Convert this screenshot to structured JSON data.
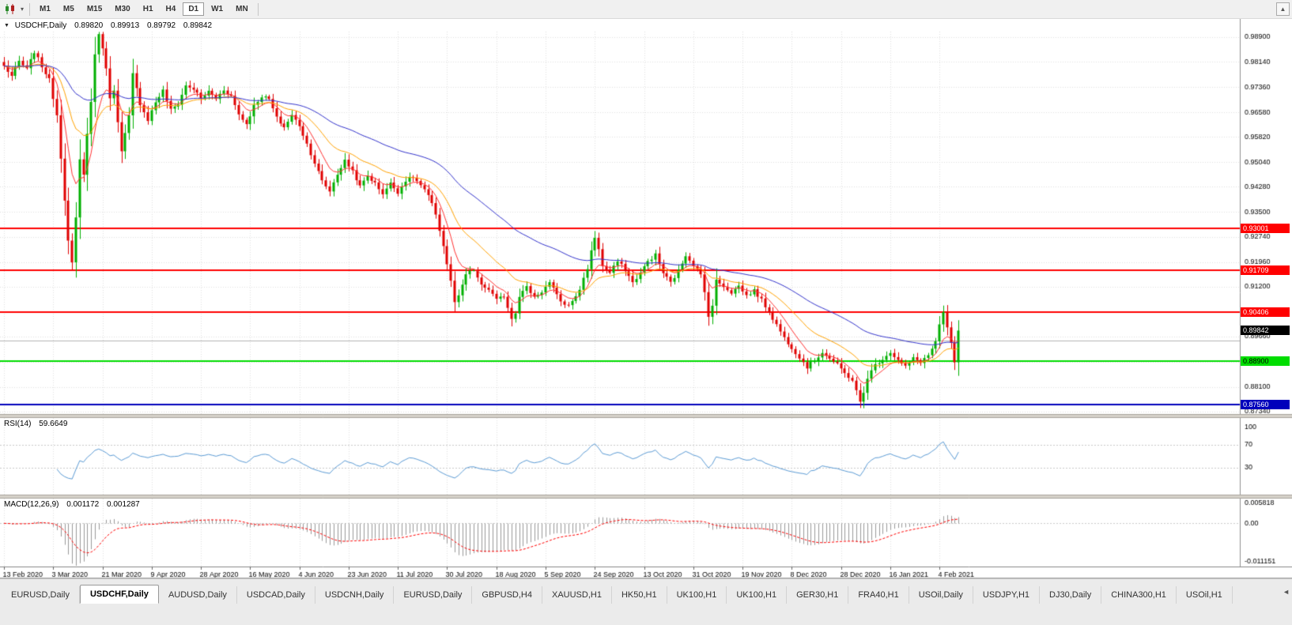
{
  "toolbar": {
    "periods": [
      "M1",
      "M5",
      "M15",
      "M30",
      "H1",
      "H4",
      "D1",
      "W1",
      "MN"
    ],
    "active_period": "D1",
    "caret_glyph": "▾",
    "dock_glyph": "▲"
  },
  "window_header": {
    "menu_glyph": "▼",
    "symbol": "USDCHF,Daily",
    "open": "0.89820",
    "high": "0.89913",
    "low": "0.89792",
    "close": "0.89842"
  },
  "chart_data": {
    "type": "candlestick",
    "symbol": "USDCHF",
    "timeframe": "Daily",
    "x_tick_labels": [
      "13 Feb 2020",
      "3 Mar 2020",
      "21 Mar 2020",
      "9 Apr 2020",
      "28 Apr 2020",
      "16 May 2020",
      "4 Jun 2020",
      "23 Jun 2020",
      "11 Jul 2020",
      "30 Jul 2020",
      "18 Aug 2020",
      "5 Sep 2020",
      "24 Sep 2020",
      "13 Oct 2020",
      "31 Oct 2020",
      "19 Nov 2020",
      "8 Dec 2020",
      "28 Dec 2020",
      "16 Jan 2021",
      "4 Feb 2021"
    ],
    "candles_per_tick": 13,
    "candle_count": 253,
    "y_axis_labels": [
      "0.98900",
      "0.98140",
      "0.97360",
      "0.96580",
      "0.95820",
      "0.95040",
      "0.94280",
      "0.93500",
      "0.92740",
      "0.91960",
      "0.91200",
      "0.90420",
      "0.89660",
      "0.88880",
      "0.88100",
      "0.87340"
    ],
    "y_range": [
      0.8729,
      0.9907
    ],
    "price_path": [
      [
        0,
        0.98
      ],
      [
        2,
        0.977
      ],
      [
        4,
        0.9815
      ],
      [
        6,
        0.979
      ],
      [
        8,
        0.9845
      ],
      [
        10,
        0.98
      ],
      [
        12,
        0.9758
      ],
      [
        14,
        0.965
      ],
      [
        16,
        0.939
      ],
      [
        17,
        0.926
      ],
      [
        18,
        0.919
      ],
      [
        19,
        0.933
      ],
      [
        20,
        0.951
      ],
      [
        21,
        0.947
      ],
      [
        22,
        0.959
      ],
      [
        23,
        0.969
      ],
      [
        24,
        0.984
      ],
      [
        25,
        0.9895
      ],
      [
        26,
        0.986
      ],
      [
        27,
        0.979
      ],
      [
        28,
        0.9705
      ],
      [
        29,
        0.973
      ],
      [
        30,
        0.9625
      ],
      [
        31,
        0.9535
      ],
      [
        33,
        0.9645
      ],
      [
        34,
        0.9775
      ],
      [
        36,
        0.9685
      ],
      [
        38,
        0.9635
      ],
      [
        40,
        0.969
      ],
      [
        42,
        0.9725
      ],
      [
        44,
        0.9665
      ],
      [
        46,
        0.9685
      ],
      [
        48,
        0.974
      ],
      [
        50,
        0.973
      ],
      [
        52,
        0.97
      ],
      [
        54,
        0.9722
      ],
      [
        56,
        0.97
      ],
      [
        58,
        0.9728
      ],
      [
        60,
        0.9708
      ],
      [
        62,
        0.9652
      ],
      [
        64,
        0.9622
      ],
      [
        66,
        0.9678
      ],
      [
        68,
        0.9708
      ],
      [
        70,
        0.9698
      ],
      [
        72,
        0.964
      ],
      [
        74,
        0.9612
      ],
      [
        76,
        0.9648
      ],
      [
        78,
        0.9618
      ],
      [
        80,
        0.956
      ],
      [
        82,
        0.9502
      ],
      [
        84,
        0.9445
      ],
      [
        86,
        0.9415
      ],
      [
        88,
        0.9468
      ],
      [
        90,
        0.9508
      ],
      [
        92,
        0.9478
      ],
      [
        94,
        0.9428
      ],
      [
        96,
        0.9462
      ],
      [
        98,
        0.9438
      ],
      [
        100,
        0.9408
      ],
      [
        102,
        0.9438
      ],
      [
        104,
        0.9412
      ],
      [
        106,
        0.9448
      ],
      [
        108,
        0.9458
      ],
      [
        110,
        0.9432
      ],
      [
        112,
        0.94
      ],
      [
        114,
        0.9345
      ],
      [
        116,
        0.9245
      ],
      [
        118,
        0.9135
      ],
      [
        119,
        0.9072
      ],
      [
        120,
        0.9088
      ],
      [
        122,
        0.9158
      ],
      [
        124,
        0.9172
      ],
      [
        126,
        0.9122
      ],
      [
        128,
        0.9112
      ],
      [
        130,
        0.9078
      ],
      [
        132,
        0.9092
      ],
      [
        134,
        0.9022
      ],
      [
        135,
        0.9042
      ],
      [
        136,
        0.9092
      ],
      [
        138,
        0.9118
      ],
      [
        140,
        0.9088
      ],
      [
        142,
        0.9105
      ],
      [
        144,
        0.9132
      ],
      [
        146,
        0.9092
      ],
      [
        148,
        0.9062
      ],
      [
        150,
        0.9072
      ],
      [
        152,
        0.9112
      ],
      [
        154,
        0.9178
      ],
      [
        155,
        0.9228
      ],
      [
        156,
        0.9272
      ],
      [
        157,
        0.9238
      ],
      [
        158,
        0.9182
      ],
      [
        160,
        0.9162
      ],
      [
        162,
        0.9198
      ],
      [
        164,
        0.9172
      ],
      [
        166,
        0.9132
      ],
      [
        168,
        0.9162
      ],
      [
        170,
        0.9198
      ],
      [
        172,
        0.9218
      ],
      [
        174,
        0.9162
      ],
      [
        176,
        0.9132
      ],
      [
        178,
        0.9168
      ],
      [
        180,
        0.9218
      ],
      [
        182,
        0.9188
      ],
      [
        184,
        0.9155
      ],
      [
        185,
        0.9102
      ],
      [
        186,
        0.9032
      ],
      [
        187,
        0.9062
      ],
      [
        188,
        0.9138
      ],
      [
        190,
        0.9122
      ],
      [
        192,
        0.9102
      ],
      [
        194,
        0.9122
      ],
      [
        196,
        0.9092
      ],
      [
        198,
        0.9108
      ],
      [
        200,
        0.9078
      ],
      [
        202,
        0.9042
      ],
      [
        204,
        0.9002
      ],
      [
        206,
        0.8962
      ],
      [
        208,
        0.8932
      ],
      [
        210,
        0.8902
      ],
      [
        212,
        0.8872
      ],
      [
        214,
        0.8892
      ],
      [
        216,
        0.8918
      ],
      [
        218,
        0.8898
      ],
      [
        220,
        0.8878
      ],
      [
        222,
        0.8852
      ],
      [
        224,
        0.8832
      ],
      [
        226,
        0.8762
      ],
      [
        227,
        0.8792
      ],
      [
        228,
        0.884
      ],
      [
        230,
        0.8878
      ],
      [
        232,
        0.8898
      ],
      [
        234,
        0.8918
      ],
      [
        236,
        0.8892
      ],
      [
        238,
        0.8872
      ],
      [
        240,
        0.8898
      ],
      [
        242,
        0.8888
      ],
      [
        244,
        0.8908
      ],
      [
        246,
        0.8948
      ],
      [
        247,
        0.8998
      ],
      [
        248,
        0.904
      ],
      [
        249,
        0.8992
      ],
      [
        250,
        0.8942
      ],
      [
        251,
        0.8888
      ],
      [
        252,
        0.89842
      ]
    ],
    "levels": [
      {
        "value": 0.93001,
        "label": "0.93001",
        "color": "#ff0000",
        "tag_text_color": "#ffffff",
        "line_width": 2
      },
      {
        "value": 0.91709,
        "label": "0.91709",
        "color": "#ff0000",
        "tag_text_color": "#ffffff",
        "line_width": 2
      },
      {
        "value": 0.90406,
        "label": "0.90406",
        "color": "#ff0000",
        "tag_text_color": "#ffffff",
        "line_width": 2
      },
      {
        "value": 0.8953,
        "label": "",
        "color": "#b4b4b4",
        "tag_text_color": "#000000",
        "line_width": 1
      },
      {
        "value": 0.889,
        "label": "0.88900",
        "color": "#00dd00",
        "tag_text_color": "#000000",
        "line_width": 2
      },
      {
        "value": 0.8756,
        "label": "0.87560",
        "color": "#0000bb",
        "tag_text_color": "#ffffff",
        "line_width": 2
      }
    ],
    "current_price": {
      "value": 0.89842,
      "label": "0.89842",
      "bg": "#000000",
      "fg": "#ffffff"
    },
    "colors": {
      "up": "#00b000",
      "down": "#e00000",
      "grid": "#e0e0e0",
      "background": "#ffffff"
    },
    "moving_averages": [
      {
        "period": 8,
        "color": "#ff3232"
      },
      {
        "period": 21,
        "color": "#ffa200"
      },
      {
        "period": 55,
        "color": "#3333cc"
      }
    ]
  },
  "rsi_panel": {
    "name": "RSI(14)",
    "value": "59.6649",
    "period": 14,
    "axis_labels": [
      "100",
      "70",
      "30"
    ],
    "levels": [
      70,
      30
    ],
    "color": "#5b9bd5"
  },
  "macd_panel": {
    "name": "MACD(12,26,9)",
    "values": [
      "0.001172",
      "0.001287"
    ],
    "params": [
      12,
      26,
      9
    ],
    "axis_labels": [
      "0.005818",
      "0.00",
      "-0.011151"
    ],
    "histogram_color": "#999999",
    "signal_color": "#ff0000"
  },
  "tabs": {
    "scroll_glyph": "◄",
    "items": [
      {
        "label": "EURUSD,Daily",
        "active": false
      },
      {
        "label": "USDCHF,Daily",
        "active": true
      },
      {
        "label": "AUDUSD,Daily",
        "active": false
      },
      {
        "label": "USDCAD,Daily",
        "active": false
      },
      {
        "label": "USDCNH,Daily",
        "active": false
      },
      {
        "label": "EURUSD,Daily",
        "active": false
      },
      {
        "label": "GBPUSD,H4",
        "active": false
      },
      {
        "label": "XAUUSD,H1",
        "active": false
      },
      {
        "label": "HK50,H1",
        "active": false
      },
      {
        "label": "UK100,H1",
        "active": false
      },
      {
        "label": "UK100,H1",
        "active": false
      },
      {
        "label": "GER30,H1",
        "active": false
      },
      {
        "label": "FRA40,H1",
        "active": false
      },
      {
        "label": "USOil,Daily",
        "active": false
      },
      {
        "label": "USDJPY,H1",
        "active": false
      },
      {
        "label": "DJ30,Daily",
        "active": false
      },
      {
        "label": "CHINA300,H1",
        "active": false
      },
      {
        "label": "USOil,H1",
        "active": false
      }
    ]
  }
}
